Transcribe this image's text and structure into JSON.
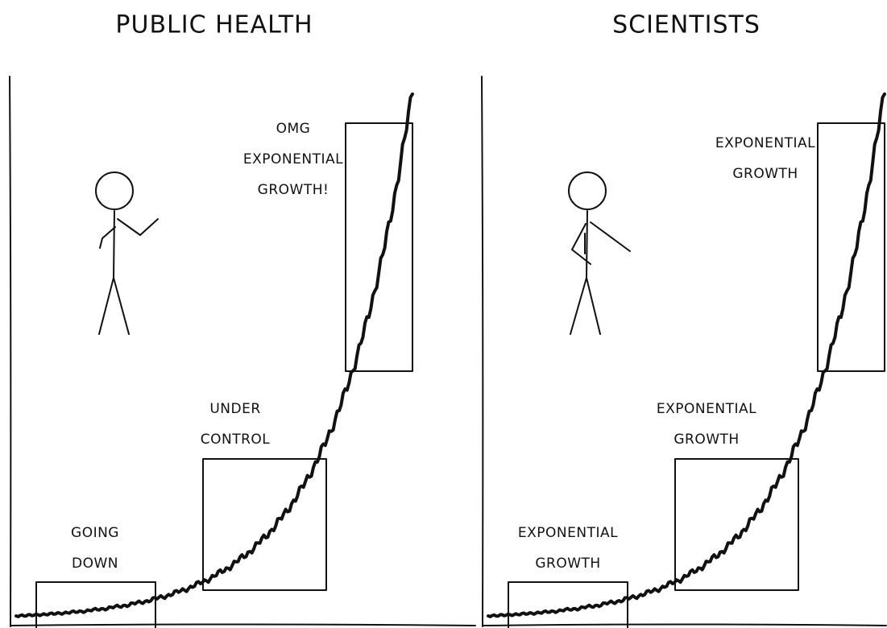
{
  "panels": [
    {
      "title": "PUBLIC HEALTH",
      "labels": [
        {
          "lines": [
            "GOING",
            "DOWN"
          ]
        },
        {
          "lines": [
            "UNDER",
            "CONTROL"
          ]
        },
        {
          "lines": [
            "OMG",
            "EXPONENTIAL",
            "GROWTH!"
          ]
        }
      ]
    },
    {
      "title": "SCIENTISTS",
      "labels": [
        {
          "lines": [
            "EXPONENTIAL",
            "GROWTH"
          ]
        },
        {
          "lines": [
            "EXPONENTIAL",
            "GROWTH"
          ]
        },
        {
          "lines": [
            "EXPONENTIAL",
            "GROWTH"
          ]
        }
      ]
    }
  ]
}
